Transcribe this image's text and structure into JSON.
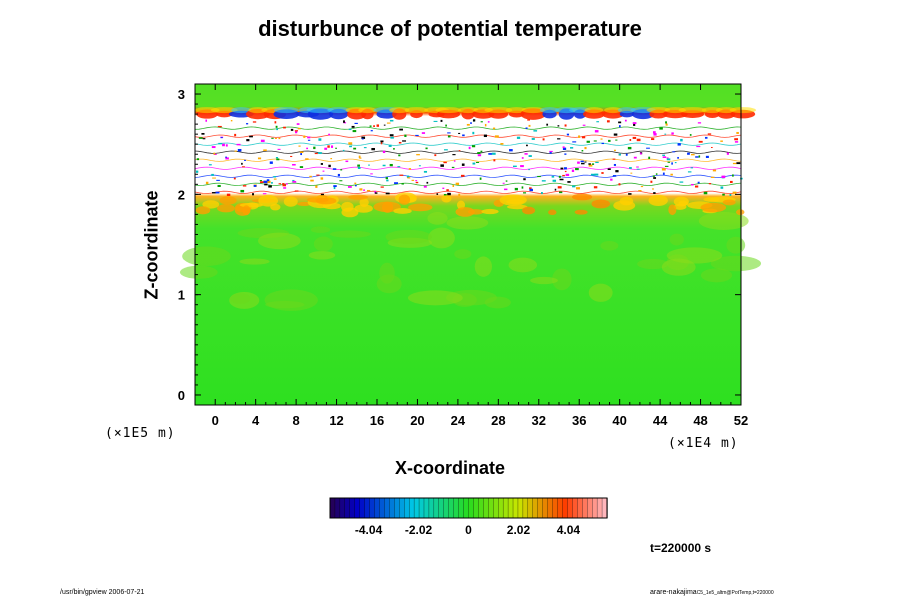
{
  "chart_data": {
    "type": "heatmap",
    "title": "disturbunce of potential temperature",
    "xlabel": "X-coordinate",
    "ylabel": "Z-coordinate",
    "x_unit": "(×1E4 m)",
    "y_unit": "(×1E5 m)",
    "xlim": [
      -2,
      52
    ],
    "ylim": [
      -0.1,
      3.1
    ],
    "x_ticks": [
      "0",
      "4",
      "8",
      "12",
      "16",
      "20",
      "24",
      "28",
      "32",
      "36",
      "40",
      "44",
      "48",
      "52"
    ],
    "y_ticks": [
      "0",
      "1",
      "2",
      "3"
    ],
    "colorbar": {
      "ticks": [
        "-4.04",
        "-2.02",
        "0",
        "2.02",
        "4.04"
      ],
      "range": [
        -5.6,
        5.6
      ],
      "colormap": "rainbow"
    },
    "field_regions": [
      {
        "z_range": [
          -0.1,
          1.9
        ],
        "description": "mostly near zero with weak positive disturbance",
        "value_range": [
          0,
          1
        ]
      },
      {
        "z_range": [
          1.85,
          2.0
        ],
        "description": "positive band",
        "value_range": [
          2,
          4.5
        ]
      },
      {
        "z_range": [
          2.0,
          2.75
        ],
        "description": "undefined / noisy band",
        "value_range": [
          -5,
          5
        ]
      },
      {
        "z_range": [
          2.75,
          2.85
        ],
        "description": "alternating strong positive and negative",
        "value_range": [
          -4.5,
          4.5
        ]
      },
      {
        "z_range": [
          2.85,
          3.1
        ],
        "description": "near zero",
        "value_range": [
          0,
          0.5
        ]
      }
    ],
    "time_label": "t=220000 s"
  },
  "footer": {
    "left": "/usr/bin/gpview 2006-07-21",
    "right_main": "arare-nakajima",
    "right_sub": "C5_1e5_altm@PotTemp,t=220000"
  },
  "colors": {
    "background_field": "#35e026",
    "positive_band": "#ff6a00",
    "negative_band": "#1020d0"
  }
}
